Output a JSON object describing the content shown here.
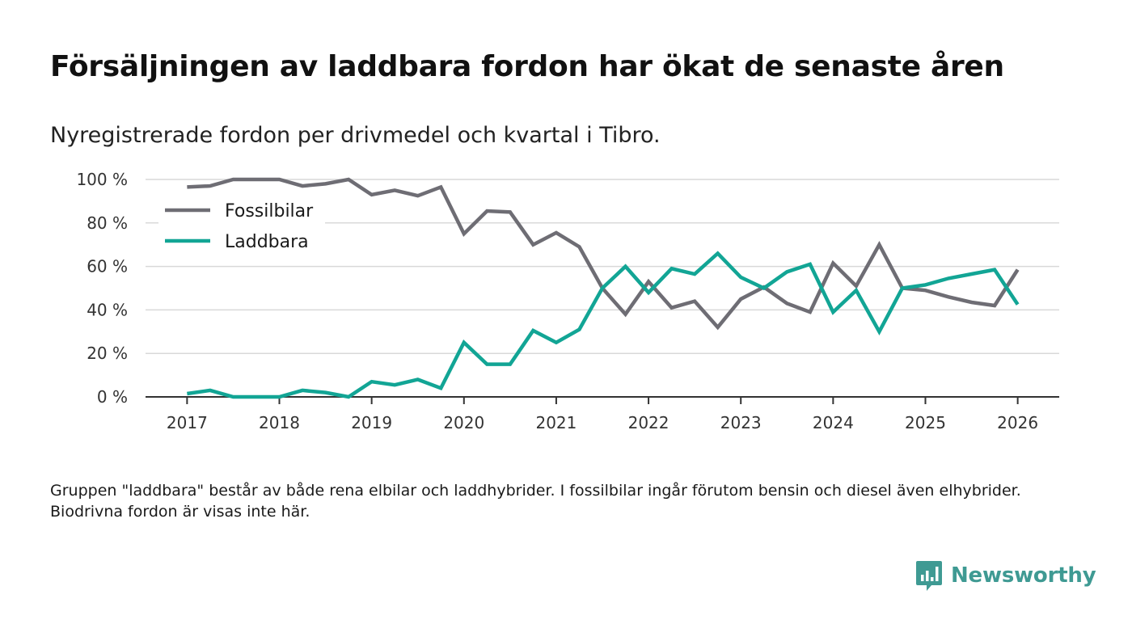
{
  "title": "Försäljningen av laddbara fordon har ökat de senaste åren",
  "subtitle": "Nyregistrerade fordon per drivmedel och kvartal i Tibro.",
  "note": "Gruppen \"laddbara\" består av både rena elbilar och laddhybrider. I fossilbilar ingår förutom bensin och diesel även elhybrider. Biodrivna fordon är visas inte här.",
  "brand": {
    "name": "Newsworthy",
    "icon": "newsworthy-logo-icon",
    "color": "#3f9a93"
  },
  "chart_data": {
    "type": "line",
    "title": "Försäljningen av laddbara fordon har ökat de senaste åren",
    "xlabel": "",
    "ylabel": "",
    "ylim": [
      0,
      100
    ],
    "xlim": [
      2016.55,
      2026.45
    ],
    "y_ticks": [
      0,
      20,
      40,
      60,
      80,
      100
    ],
    "y_tick_labels": [
      "0 %",
      "20 %",
      "40 %",
      "60 %",
      "80 %",
      "100 %"
    ],
    "x_ticks": [
      2017,
      2018,
      2019,
      2020,
      2021,
      2022,
      2023,
      2024,
      2025,
      2026
    ],
    "x_tick_labels": [
      "2017",
      "2018",
      "2019",
      "2020",
      "2021",
      "2022",
      "2023",
      "2024",
      "2025",
      "2026"
    ],
    "grid": true,
    "legend_position": "top-left",
    "x": [
      2017.0,
      2017.25,
      2017.5,
      2017.75,
      2018.0,
      2018.25,
      2018.5,
      2018.75,
      2019.0,
      2019.25,
      2019.5,
      2019.75,
      2020.0,
      2020.25,
      2020.5,
      2020.75,
      2021.0,
      2021.25,
      2021.5,
      2021.75,
      2022.0,
      2022.25,
      2022.5,
      2022.75,
      2023.0,
      2023.25,
      2023.5,
      2023.75,
      2024.0,
      2024.25,
      2024.5,
      2024.75,
      2025.0,
      2025.25,
      2025.5,
      2025.75,
      2026.0
    ],
    "series": [
      {
        "name": "Fossilbilar",
        "color": "#6e6d74",
        "values": [
          96.5,
          97,
          100,
          100,
          100,
          97,
          98,
          100,
          93,
          95,
          92.5,
          96.5,
          75,
          85.5,
          85,
          70,
          75.5,
          69,
          50,
          38,
          53,
          41,
          44,
          32,
          45,
          50.5,
          43,
          39,
          61.5,
          51,
          70,
          50,
          49,
          46,
          43.5,
          42,
          58.5
        ]
      },
      {
        "name": "Laddbara",
        "color": "#12a595",
        "values": [
          1.5,
          3,
          0,
          0,
          0,
          3,
          2,
          0,
          7,
          5.5,
          8,
          4,
          25,
          15,
          15,
          30.5,
          25,
          31,
          50,
          60,
          48,
          59,
          56.5,
          66,
          55,
          50,
          57.5,
          61,
          39,
          49,
          30,
          50,
          51.5,
          54.5,
          56.5,
          58.5,
          42.5
        ]
      }
    ]
  }
}
